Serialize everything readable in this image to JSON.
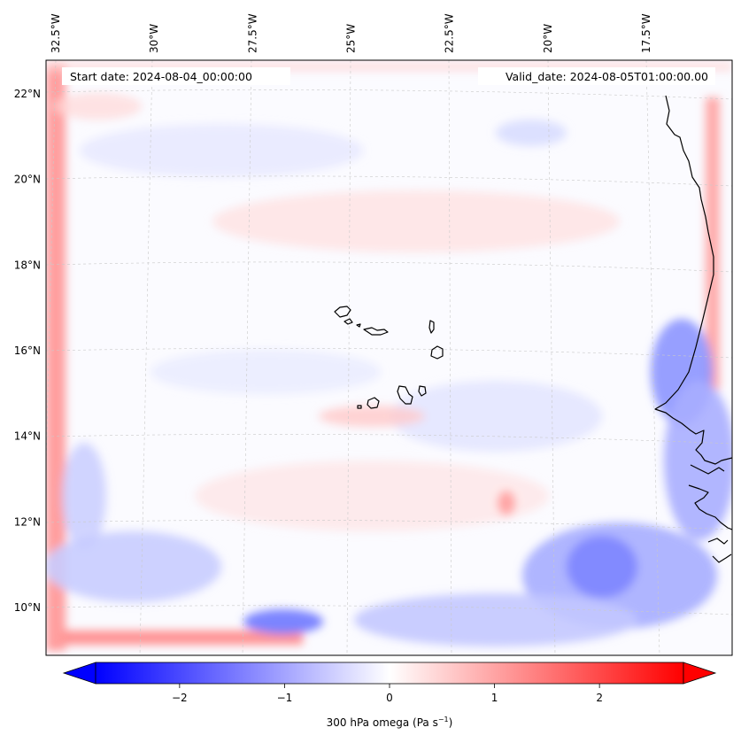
{
  "map": {
    "extent": {
      "lon_min": -33.0,
      "lon_max": -15.5,
      "lat_min": 8.8,
      "lat_max": 22.8
    },
    "start_date_text": "Start date: 2024-08-04_00:00:00",
    "valid_date_text": "Valid_date: 2024-08-05T01:00:00.00",
    "lon_labels": [
      {
        "lon": -32.5,
        "text": "32.5°W"
      },
      {
        "lon": -30.0,
        "text": "30°W"
      },
      {
        "lon": -27.5,
        "text": "27.5°W"
      },
      {
        "lon": -25.0,
        "text": "25°W"
      },
      {
        "lon": -22.5,
        "text": "22.5°W"
      },
      {
        "lon": -20.0,
        "text": "20°W"
      },
      {
        "lon": -17.5,
        "text": "17.5°W"
      }
    ],
    "lat_labels": [
      {
        "lat": 22,
        "text": "22°N"
      },
      {
        "lat": 20,
        "text": "20°N"
      },
      {
        "lat": 18,
        "text": "18°N"
      },
      {
        "lat": 16,
        "text": "16°N"
      },
      {
        "lat": 14,
        "text": "14°N"
      },
      {
        "lat": 12,
        "text": "12°N"
      },
      {
        "lat": 10,
        "text": "10°N"
      }
    ]
  },
  "colorbar": {
    "label": "300 hPa omega (Pa s",
    "label_sup": "−1",
    "label_end": ")",
    "vmin": -2.8,
    "vmax": 2.8,
    "colors": {
      "min": "#0000ff",
      "mid": "#ffffff",
      "max": "#ff0000"
    },
    "ticks": [
      {
        "value": -2,
        "text": "−2"
      },
      {
        "value": -1,
        "text": "−1"
      },
      {
        "value": 0,
        "text": "0"
      },
      {
        "value": 1,
        "text": "1"
      },
      {
        "value": 2,
        "text": "2"
      }
    ]
  }
}
